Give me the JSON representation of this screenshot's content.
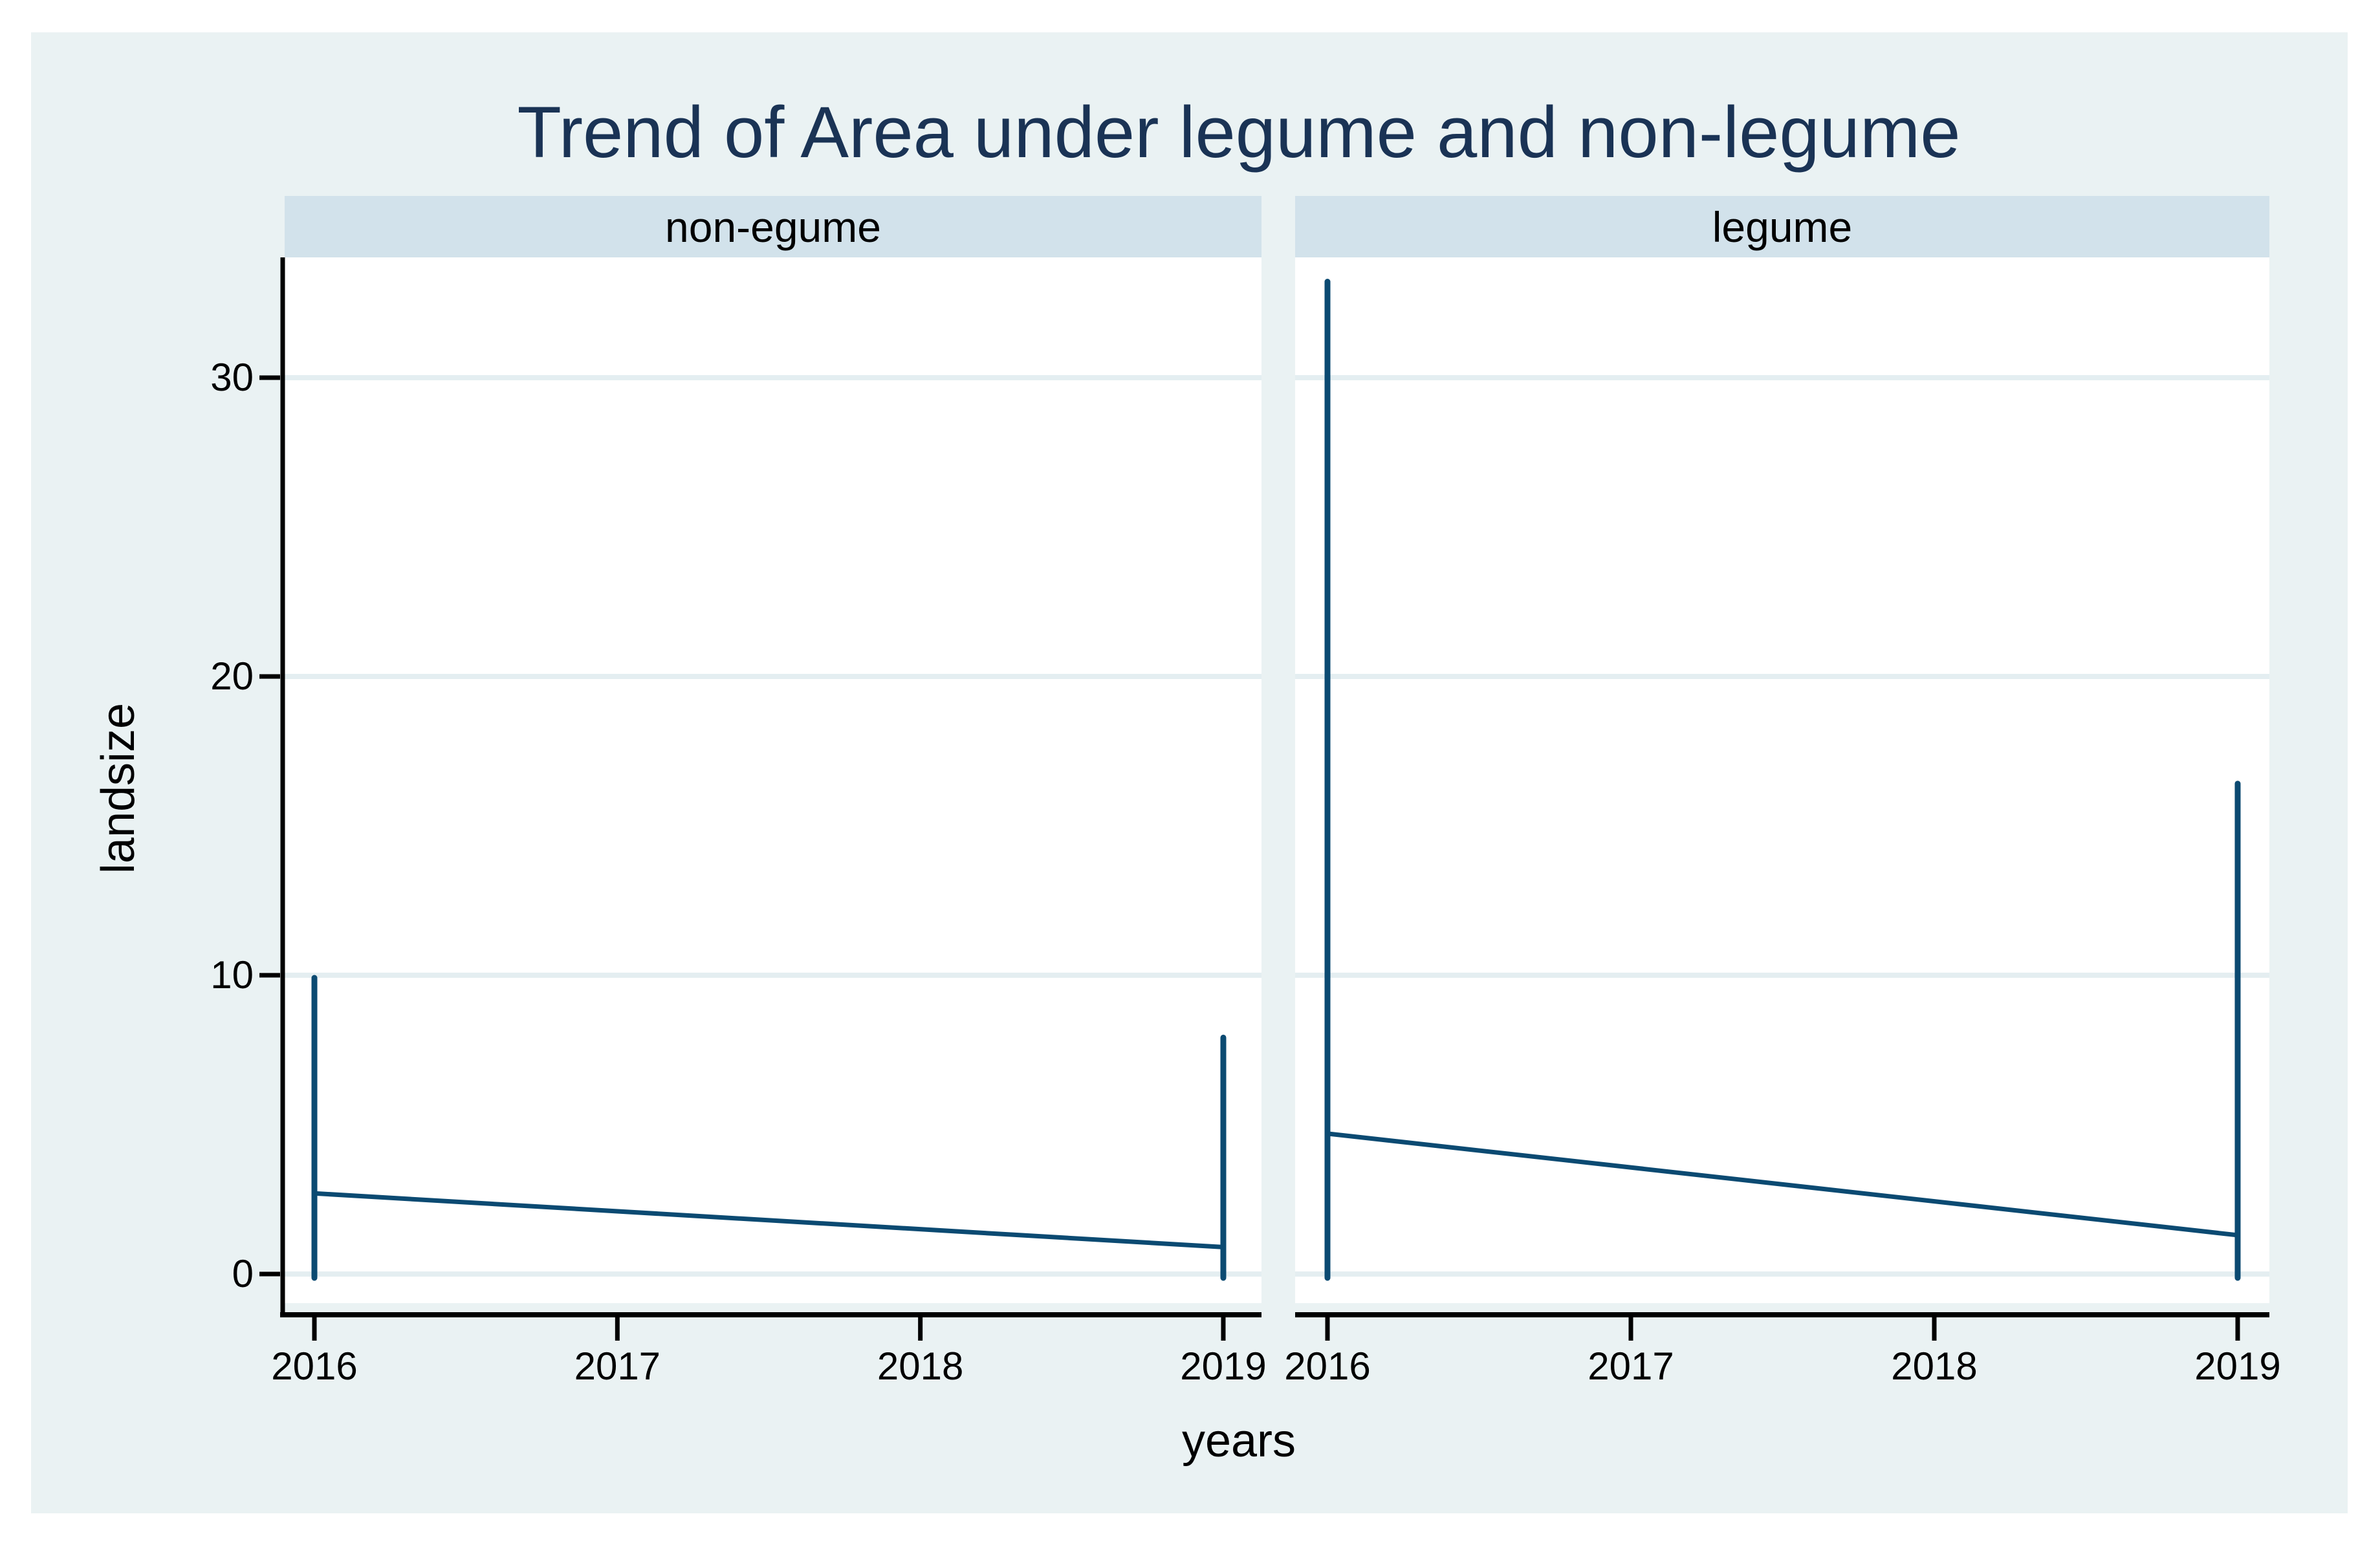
{
  "graph": {
    "title": "Trend of Area under legume and non-legume",
    "y_axis_title": "landsize",
    "x_axis_title": "years",
    "panel_headers": [
      "non-egume",
      "legume"
    ]
  },
  "chart_data": {
    "type": "line",
    "title": "Trend of Area under legume and non-legume",
    "xlabel": "years",
    "ylabel": "landsize",
    "x_ticks": [
      2016,
      2017,
      2018,
      2019
    ],
    "y_ticks": [
      0,
      10,
      20,
      30
    ],
    "xlim": [
      2015.9,
      2019.1
    ],
    "ylim": [
      -1,
      34
    ],
    "grid": true,
    "legend": "none",
    "panels": [
      {
        "label": "non-egume",
        "trend_line": {
          "x": [
            2016,
            2019
          ],
          "y": [
            2.7,
            0.9
          ]
        },
        "spikes": [
          {
            "x": 2016,
            "y_min": 0,
            "y_max": 10
          },
          {
            "x": 2019,
            "y_min": 0,
            "y_max": 8
          }
        ]
      },
      {
        "label": "legume",
        "trend_line": {
          "x": [
            2016,
            2019
          ],
          "y": [
            4.7,
            1.3
          ]
        },
        "spikes": [
          {
            "x": 2016,
            "y_min": 0,
            "y_max": 33.3
          },
          {
            "x": 2019,
            "y_min": 0,
            "y_max": 16.5
          }
        ]
      }
    ]
  },
  "colors": {
    "page_background": "#ffffff",
    "graph_background": "#eaf2f3",
    "panel_header_background": "#d2e2eb",
    "plot_background": "#ffffff",
    "gridline": "#e4eef1",
    "axis": "#000000",
    "title_text": "#1a3355",
    "data_line": "#0b4a72"
  }
}
